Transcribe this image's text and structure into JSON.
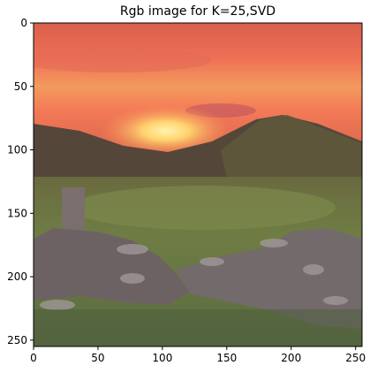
{
  "chart_data": {
    "type": "image",
    "title": "Rgb image for K=25,SVD",
    "xlabel": "",
    "ylabel": "",
    "xlim": [
      0,
      255
    ],
    "ylim": [
      255,
      0
    ],
    "x_ticks": [
      0,
      50,
      100,
      150,
      200,
      250
    ],
    "y_ticks": [
      0,
      50,
      100,
      150,
      200,
      250
    ],
    "grid": false,
    "legend": "none"
  },
  "scene": {
    "description_colors": {
      "sky_top": "#e0674f",
      "sky_mid": "#f0785a",
      "sun_glow": "#ffd277",
      "hills": "#5a4a3a",
      "grass": "#6b7a45",
      "rocks": "#7c7375"
    }
  }
}
